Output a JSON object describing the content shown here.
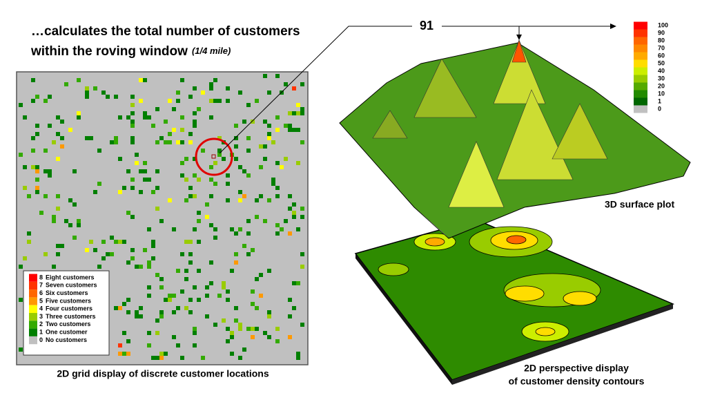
{
  "header": {
    "title_line1": "…calculates the total number of customers",
    "title_line2": "within the roving window",
    "title_note": "(1/4 mile)"
  },
  "callout": {
    "value": 91
  },
  "grid_legend": {
    "items": [
      {
        "count": 8,
        "label": "Eight customers",
        "color": "#ff0000"
      },
      {
        "count": 7,
        "label": "Seven customers",
        "color": "#ff3300"
      },
      {
        "count": 6,
        "label": "Six customers",
        "color": "#ff6600"
      },
      {
        "count": 5,
        "label": "Five customers",
        "color": "#ff9900"
      },
      {
        "count": 4,
        "label": "Four customers",
        "color": "#ffff00"
      },
      {
        "count": 3,
        "label": "Three customers",
        "color": "#99cc00"
      },
      {
        "count": 2,
        "label": "Two customers",
        "color": "#33aa00"
      },
      {
        "count": 1,
        "label": "One customer",
        "color": "#007f00"
      },
      {
        "count": 0,
        "label": "No customers",
        "color": "#c0c0c0"
      }
    ]
  },
  "density_legend": {
    "items": [
      {
        "value": 100,
        "color": "#ff0000"
      },
      {
        "value": 90,
        "color": "#ff3300"
      },
      {
        "value": 80,
        "color": "#ff6600"
      },
      {
        "value": 70,
        "color": "#ff8800"
      },
      {
        "value": 60,
        "color": "#ffaa00"
      },
      {
        "value": 50,
        "color": "#ffdd00"
      },
      {
        "value": 40,
        "color": "#ccee00"
      },
      {
        "value": 30,
        "color": "#99cc00"
      },
      {
        "value": 20,
        "color": "#55aa00"
      },
      {
        "value": 10,
        "color": "#228b00"
      },
      {
        "value": 1,
        "color": "#006600"
      },
      {
        "value": 0,
        "color": "#c0c0c0"
      }
    ]
  },
  "captions": {
    "grid": "2D grid display of discrete customer locations",
    "surface": "3D surface plot",
    "contour_line1": "2D perspective display",
    "contour_line2": "of customer density contours"
  }
}
